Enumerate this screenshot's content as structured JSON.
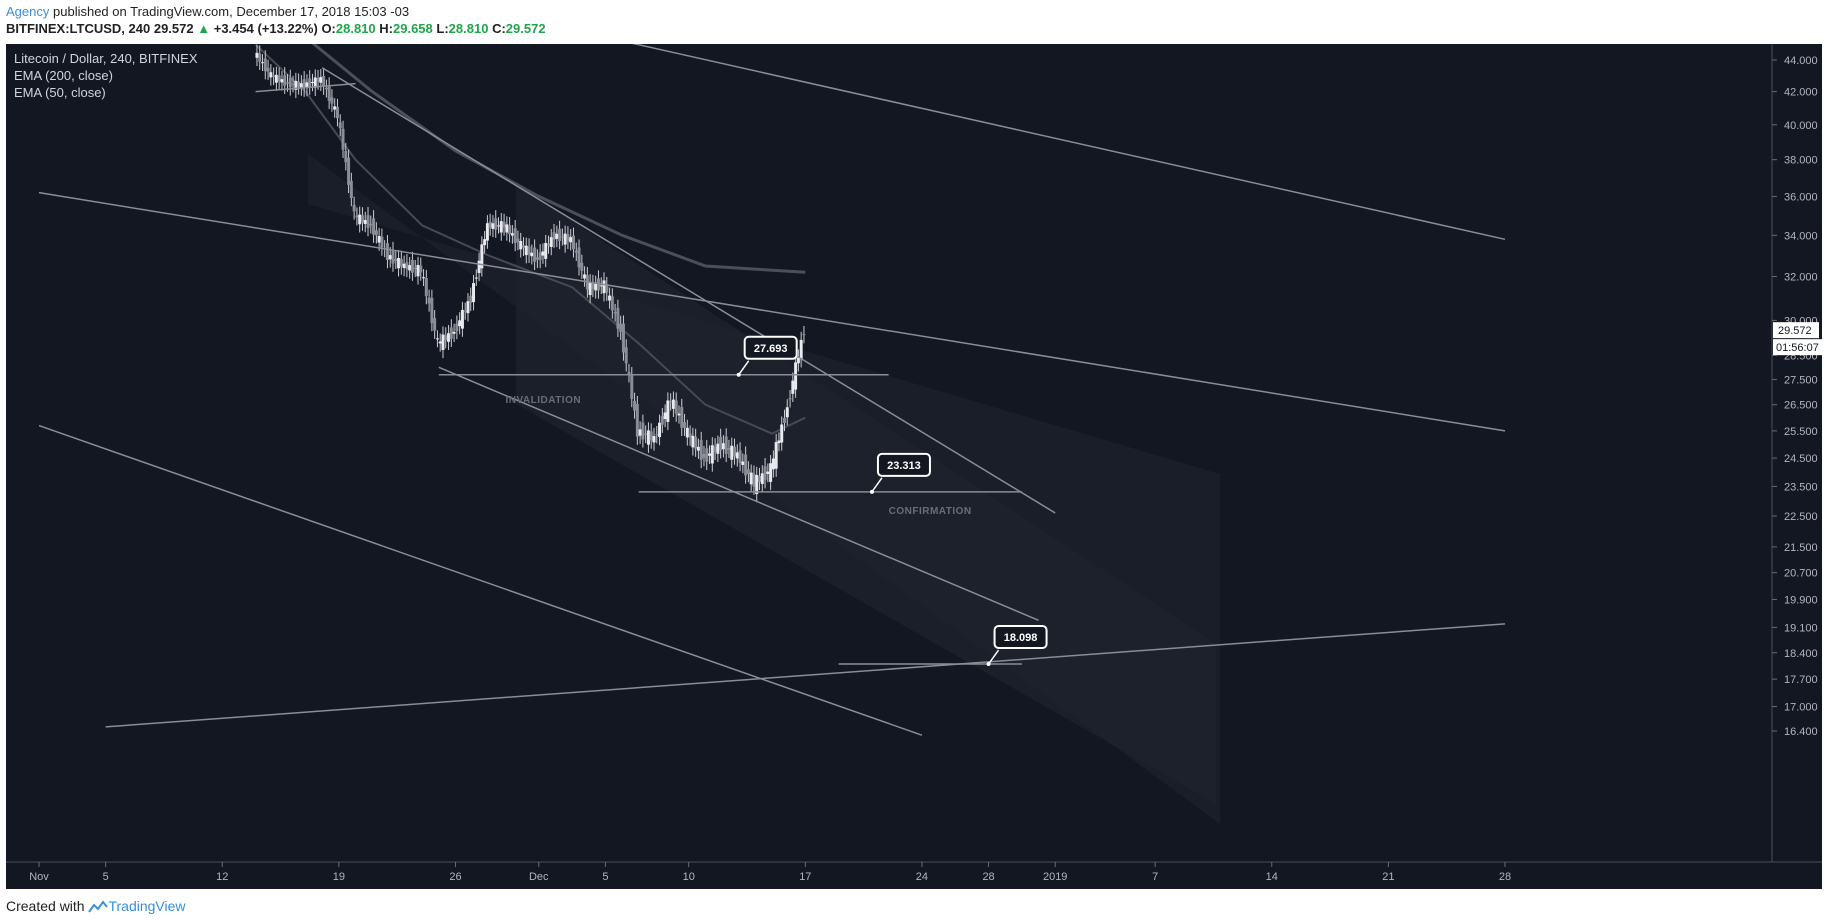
{
  "header": {
    "author": "Agency",
    "published": "published on TradingView.com, December 17, 2018 15:03 -03",
    "symbol": "BITFINEX:LTCUSD, 240",
    "last": "29.572",
    "change_arrow": "▲",
    "change": "+3.454 (+13.22%)",
    "o_label": "O:",
    "o_value": "28.810",
    "h_label": "H:",
    "h_value": "29.658",
    "l_label": "L:",
    "l_value": "28.810",
    "c_label": "C:",
    "c_value": "29.572"
  },
  "legend": {
    "title": "Litecoin / Dollar, 240, BITFINEX",
    "ema1": "EMA (200, close)",
    "ema2": "EMA (50, close)"
  },
  "footer": {
    "created": "Created with",
    "brand": "TradingView"
  },
  "colors": {
    "background": "#131722",
    "grid_text": "#b2b5be",
    "lines": "#8a8d96",
    "accent": "#3a8fd9",
    "up": "#1fa54a"
  },
  "chart_data": {
    "type": "candlestick",
    "title": "Litecoin / Dollar, 240, BITFINEX",
    "price_axis": {
      "ticks": [
        "44.000",
        "42.000",
        "40.000",
        "38.000",
        "36.000",
        "34.000",
        "32.000",
        "30.000",
        "28.500",
        "27.500",
        "26.500",
        "25.500",
        "24.500",
        "23.500",
        "22.500",
        "21.500",
        "20.700",
        "19.900",
        "19.100",
        "18.400",
        "17.700",
        "17.000",
        "16.400"
      ],
      "scale": "log",
      "current_price": "29.572",
      "countdown": "01:56:07"
    },
    "time_axis": {
      "ticks": [
        "Nov",
        "5",
        "12",
        "19",
        "26",
        "Dec",
        "5",
        "10",
        "17",
        "24",
        "28",
        "2019",
        "7",
        "14",
        "21",
        "28"
      ],
      "range": [
        "2018-11-01",
        "2019-01-28"
      ]
    },
    "series": [
      {
        "kind": "price",
        "points": [
          {
            "date": "2018-11-14",
            "close": 44.5
          },
          {
            "date": "2018-11-15",
            "close": 43.0
          },
          {
            "date": "2018-11-16",
            "close": 42.5
          },
          {
            "date": "2018-11-17",
            "close": 42.4
          },
          {
            "date": "2018-11-18",
            "close": 42.8
          },
          {
            "date": "2018-11-19",
            "close": 40.5
          },
          {
            "date": "2018-11-20",
            "close": 35.0
          },
          {
            "date": "2018-11-21",
            "close": 34.5
          },
          {
            "date": "2018-11-22",
            "close": 33.0
          },
          {
            "date": "2018-11-23",
            "close": 32.5
          },
          {
            "date": "2018-11-24",
            "close": 32.3
          },
          {
            "date": "2018-11-25",
            "close": 29.0
          },
          {
            "date": "2018-11-26",
            "close": 29.5
          },
          {
            "date": "2018-11-27",
            "close": 31.0
          },
          {
            "date": "2018-11-28",
            "close": 34.5
          },
          {
            "date": "2018-11-29",
            "close": 34.5
          },
          {
            "date": "2018-11-30",
            "close": 33.5
          },
          {
            "date": "2018-12-01",
            "close": 32.8
          },
          {
            "date": "2018-12-02",
            "close": 34.0
          },
          {
            "date": "2018-12-03",
            "close": 33.8
          },
          {
            "date": "2018-12-04",
            "close": 31.5
          },
          {
            "date": "2018-12-05",
            "close": 31.6
          },
          {
            "date": "2018-12-06",
            "close": 29.5
          },
          {
            "date": "2018-12-07",
            "close": 25.5
          },
          {
            "date": "2018-12-08",
            "close": 25.2
          },
          {
            "date": "2018-12-09",
            "close": 26.7
          },
          {
            "date": "2018-12-10",
            "close": 25.4
          },
          {
            "date": "2018-12-11",
            "close": 24.5
          },
          {
            "date": "2018-12-12",
            "close": 25.0
          },
          {
            "date": "2018-12-13",
            "close": 24.6
          },
          {
            "date": "2018-12-14",
            "close": 23.6
          },
          {
            "date": "2018-12-15",
            "close": 24.1
          },
          {
            "date": "2018-12-16",
            "close": 26.4
          },
          {
            "date": "2018-12-17",
            "close": 29.572
          }
        ]
      },
      {
        "name": "EMA (200, close)",
        "points": [
          {
            "date": "2018-11-17",
            "close": 45.5
          },
          {
            "date": "2018-11-21",
            "close": 42.0
          },
          {
            "date": "2018-11-26",
            "close": 38.5
          },
          {
            "date": "2018-12-01",
            "close": 36.0
          },
          {
            "date": "2018-12-06",
            "close": 34.0
          },
          {
            "date": "2018-12-11",
            "close": 32.5
          },
          {
            "date": "2018-12-17",
            "close": 32.2
          }
        ]
      },
      {
        "name": "EMA (50, close)",
        "points": [
          {
            "date": "2018-11-14",
            "close": 45.0
          },
          {
            "date": "2018-11-17",
            "close": 42.0
          },
          {
            "date": "2018-11-20",
            "close": 38.0
          },
          {
            "date": "2018-11-24",
            "close": 34.5
          },
          {
            "date": "2018-11-28",
            "close": 33.0
          },
          {
            "date": "2018-12-03",
            "close": 31.5
          },
          {
            "date": "2018-12-07",
            "close": 29.0
          },
          {
            "date": "2018-12-11",
            "close": 26.5
          },
          {
            "date": "2018-12-15",
            "close": 25.4
          },
          {
            "date": "2018-12-17",
            "close": 26.0
          }
        ]
      }
    ],
    "trendlines": [
      {
        "from": {
          "date": "2018-11-18",
          "price": 43.5
        },
        "to": {
          "date": "2019-01-01",
          "price": 22.6
        }
      },
      {
        "from": {
          "date": "2018-11-25",
          "price": 28.0
        },
        "to": {
          "date": "2018-12-31",
          "price": 19.3
        }
      },
      {
        "from": {
          "date": "2018-11-01",
          "price": 36.2
        },
        "to": {
          "date": "2019-01-28",
          "price": 25.5
        }
      },
      {
        "from": {
          "date": "2018-12-03",
          "price": 46.0
        },
        "to": {
          "date": "2019-01-28",
          "price": 33.8
        }
      },
      {
        "from": {
          "date": "2018-11-01",
          "price": 25.7
        },
        "to": {
          "date": "2018-12-24",
          "price": 16.3
        }
      },
      {
        "from": {
          "date": "2018-11-05",
          "price": 16.5
        },
        "to": {
          "date": "2019-01-28",
          "price": 19.2
        }
      },
      {
        "from": {
          "date": "2018-11-14",
          "price": 42.0
        },
        "to": {
          "date": "2018-11-20",
          "price": 42.5
        }
      }
    ],
    "levels": [
      {
        "value": "27.693",
        "from": "2018-11-25",
        "to": "2018-12-22",
        "label": "INVALIDATION"
      },
      {
        "value": "23.313",
        "from": "2018-12-07",
        "to": "2018-12-30",
        "label": "CONFIRMATION"
      },
      {
        "value": "18.098",
        "from": "2018-12-19",
        "to": "2018-12-30",
        "label": ""
      }
    ],
    "callouts": [
      {
        "text": "27.693",
        "date": "2018-12-13",
        "price": 27.693
      },
      {
        "text": "23.313",
        "date": "2018-12-21",
        "price": 23.313
      },
      {
        "text": "18.098",
        "date": "2018-12-28",
        "price": 18.098
      }
    ]
  }
}
